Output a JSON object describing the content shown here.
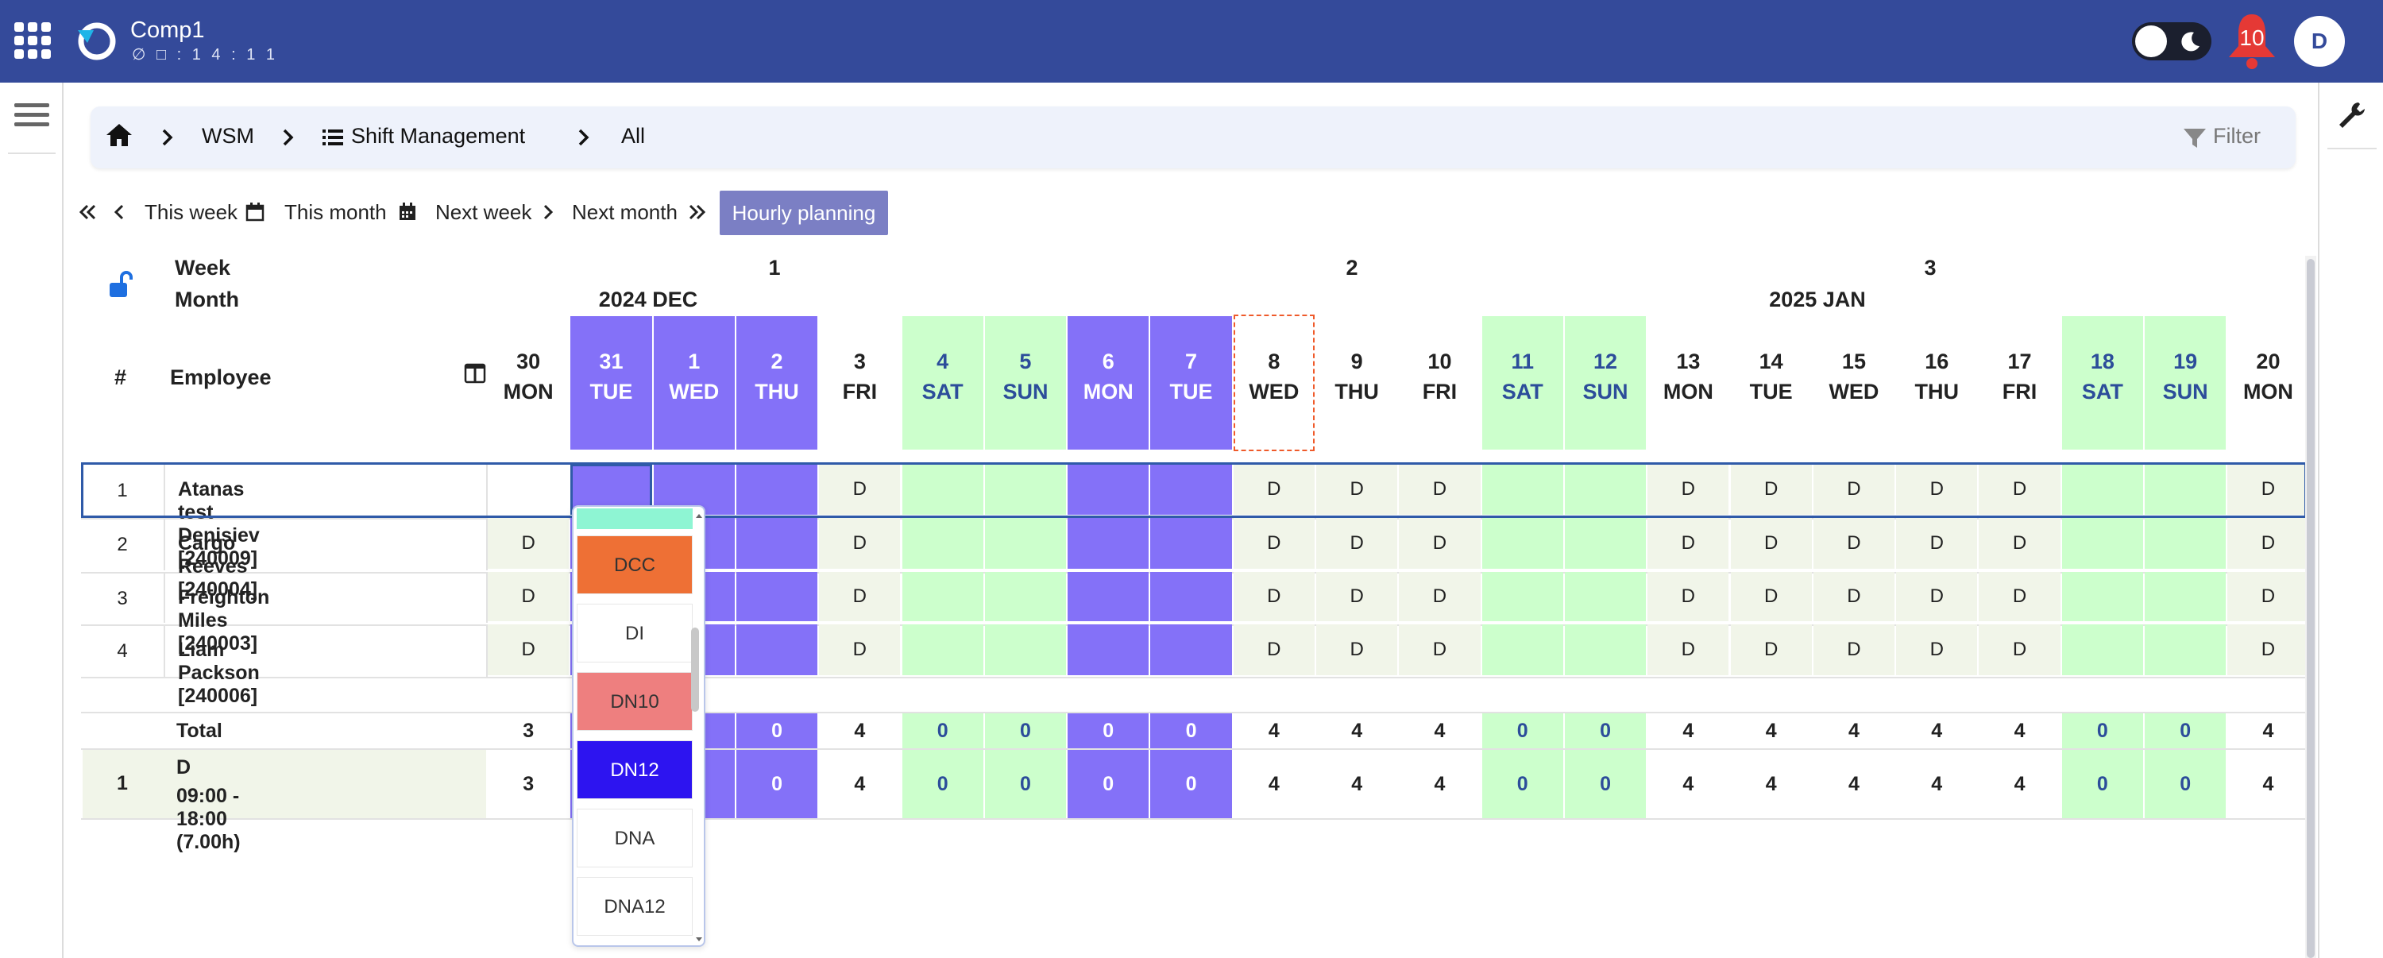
{
  "app": {
    "title": "Comp1",
    "subtitle": "∅ □ : 1 4 : 1 1",
    "notifications": "10",
    "avatar": "D"
  },
  "breadcrumb": {
    "items": [
      "WSM",
      "Shift Management",
      "All"
    ],
    "filter": "Filter"
  },
  "nav": {
    "this_week": "This week",
    "this_month": "This month",
    "next_week": "Next week",
    "next_month": "Next month",
    "hourly": "Hourly planning"
  },
  "headers": {
    "week": "Week",
    "month": "Month",
    "num": "#",
    "employee": "Employee"
  },
  "weeks": [
    "1",
    "2",
    "3"
  ],
  "months": [
    "2024 DEC",
    "2025 JAN"
  ],
  "days": [
    {
      "d": "30",
      "w": "MON",
      "t": "n"
    },
    {
      "d": "31",
      "w": "TUE",
      "t": "p"
    },
    {
      "d": "1",
      "w": "WED",
      "t": "p"
    },
    {
      "d": "2",
      "w": "THU",
      "t": "p"
    },
    {
      "d": "3",
      "w": "FRI",
      "t": "n"
    },
    {
      "d": "4",
      "w": "SAT",
      "t": "g"
    },
    {
      "d": "5",
      "w": "SUN",
      "t": "g"
    },
    {
      "d": "6",
      "w": "MON",
      "t": "p"
    },
    {
      "d": "7",
      "w": "TUE",
      "t": "p"
    },
    {
      "d": "8",
      "w": "WED",
      "t": "today"
    },
    {
      "d": "9",
      "w": "THU",
      "t": "n"
    },
    {
      "d": "10",
      "w": "FRI",
      "t": "n"
    },
    {
      "d": "11",
      "w": "SAT",
      "t": "g"
    },
    {
      "d": "12",
      "w": "SUN",
      "t": "g"
    },
    {
      "d": "13",
      "w": "MON",
      "t": "n"
    },
    {
      "d": "14",
      "w": "TUE",
      "t": "n"
    },
    {
      "d": "15",
      "w": "WED",
      "t": "n"
    },
    {
      "d": "16",
      "w": "THU",
      "t": "n"
    },
    {
      "d": "17",
      "w": "FRI",
      "t": "n"
    },
    {
      "d": "18",
      "w": "SAT",
      "t": "g"
    },
    {
      "d": "19",
      "w": "SUN",
      "t": "g"
    },
    {
      "d": "20",
      "w": "MON",
      "t": "n"
    }
  ],
  "employees": [
    {
      "n": "1",
      "name": "Atanas test Denisiev [240009]",
      "cells": [
        "",
        "",
        "",
        "",
        "D",
        "",
        "",
        "",
        "",
        "D",
        "D",
        "D",
        "",
        "",
        "D",
        "D",
        "D",
        "D",
        "D",
        "",
        "",
        "D"
      ]
    },
    {
      "n": "2",
      "name": "Cargo Reeves [240004]",
      "cells": [
        "D",
        "",
        "",
        "",
        "D",
        "",
        "",
        "",
        "",
        "D",
        "D",
        "D",
        "",
        "",
        "D",
        "D",
        "D",
        "D",
        "D",
        "",
        "",
        "D"
      ]
    },
    {
      "n": "3",
      "name": "Freighton Miles [240003]",
      "cells": [
        "D",
        "",
        "",
        "",
        "D",
        "",
        "",
        "",
        "",
        "D",
        "D",
        "D",
        "",
        "",
        "D",
        "D",
        "D",
        "D",
        "D",
        "",
        "",
        "D"
      ]
    },
    {
      "n": "4",
      "name": "Liam Packson [240006]",
      "cells": [
        "D",
        "",
        "",
        "",
        "D",
        "",
        "",
        "",
        "",
        "D",
        "D",
        "D",
        "",
        "",
        "D",
        "D",
        "D",
        "D",
        "D",
        "",
        "",
        "D"
      ]
    }
  ],
  "total": {
    "label": "Total",
    "values": [
      "3",
      "",
      "",
      "0",
      "4",
      "0",
      "0",
      "0",
      "0",
      "4",
      "4",
      "4",
      "0",
      "0",
      "4",
      "4",
      "4",
      "4",
      "4",
      "0",
      "0",
      "4"
    ]
  },
  "shift_row": {
    "n": "1",
    "code": "D",
    "time": "09:00 - 18:00 (7.00h)",
    "values": [
      "3",
      "",
      "",
      "0",
      "4",
      "0",
      "0",
      "0",
      "0",
      "4",
      "4",
      "4",
      "0",
      "0",
      "4",
      "4",
      "4",
      "4",
      "4",
      "0",
      "0",
      "4"
    ]
  },
  "dropdown": {
    "options": [
      {
        "label": "DCC",
        "bg": "#ee7035",
        "fg": "#333"
      },
      {
        "label": "DI",
        "bg": "#ffffff",
        "fg": "#333"
      },
      {
        "label": "DN10",
        "bg": "#ee7f7f",
        "fg": "#333"
      },
      {
        "label": "DN12",
        "bg": "#2d14f0",
        "fg": "#ffffff"
      },
      {
        "label": "DNA",
        "bg": "#ffffff",
        "fg": "#333"
      },
      {
        "label": "DNA12",
        "bg": "#ffffff",
        "fg": "#333"
      }
    ]
  },
  "colors": {
    "purple": "#8471f8",
    "green": "#ccffcc",
    "light": "#f1f5e9",
    "weekend_text": "#2c4d9a",
    "topbar": "#344a9a"
  }
}
